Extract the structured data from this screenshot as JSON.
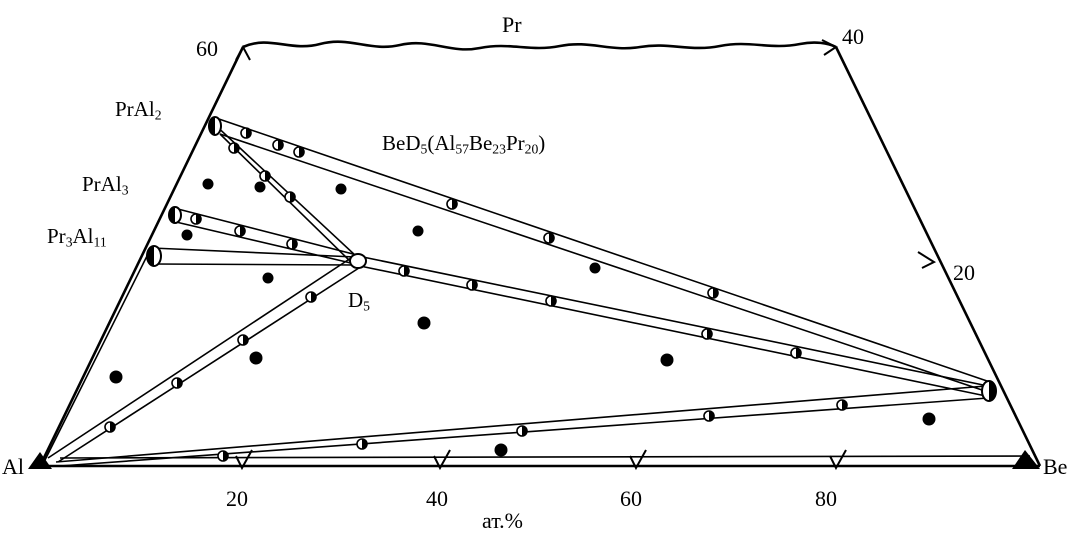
{
  "corners": {
    "left": "Al",
    "right": "Be",
    "top": "Pr"
  },
  "axis": {
    "bottom_ticks": [
      "20",
      "40",
      "60",
      "80"
    ],
    "bottom_unit": "ат.%",
    "left_tick": "60",
    "right_ticks": [
      "40",
      "20"
    ]
  },
  "phases": {
    "prAl2": {
      "main": "PrAl",
      "sub": "2"
    },
    "prAl3": {
      "main": "PrAl",
      "sub": "3"
    },
    "pr3Al11": {
      "a": "Pr",
      "a_sub": "3",
      "b": "Al",
      "b_sub": "11"
    },
    "beD5": {
      "a": "BeD",
      "a_sub": "5",
      "b": "(Al",
      "b_sub": "57",
      "c": "Be",
      "c_sub": "23",
      "d": "Pr",
      "d_sub": "20",
      "e": ")"
    },
    "d5": {
      "main": "D",
      "sub": "5"
    }
  }
}
